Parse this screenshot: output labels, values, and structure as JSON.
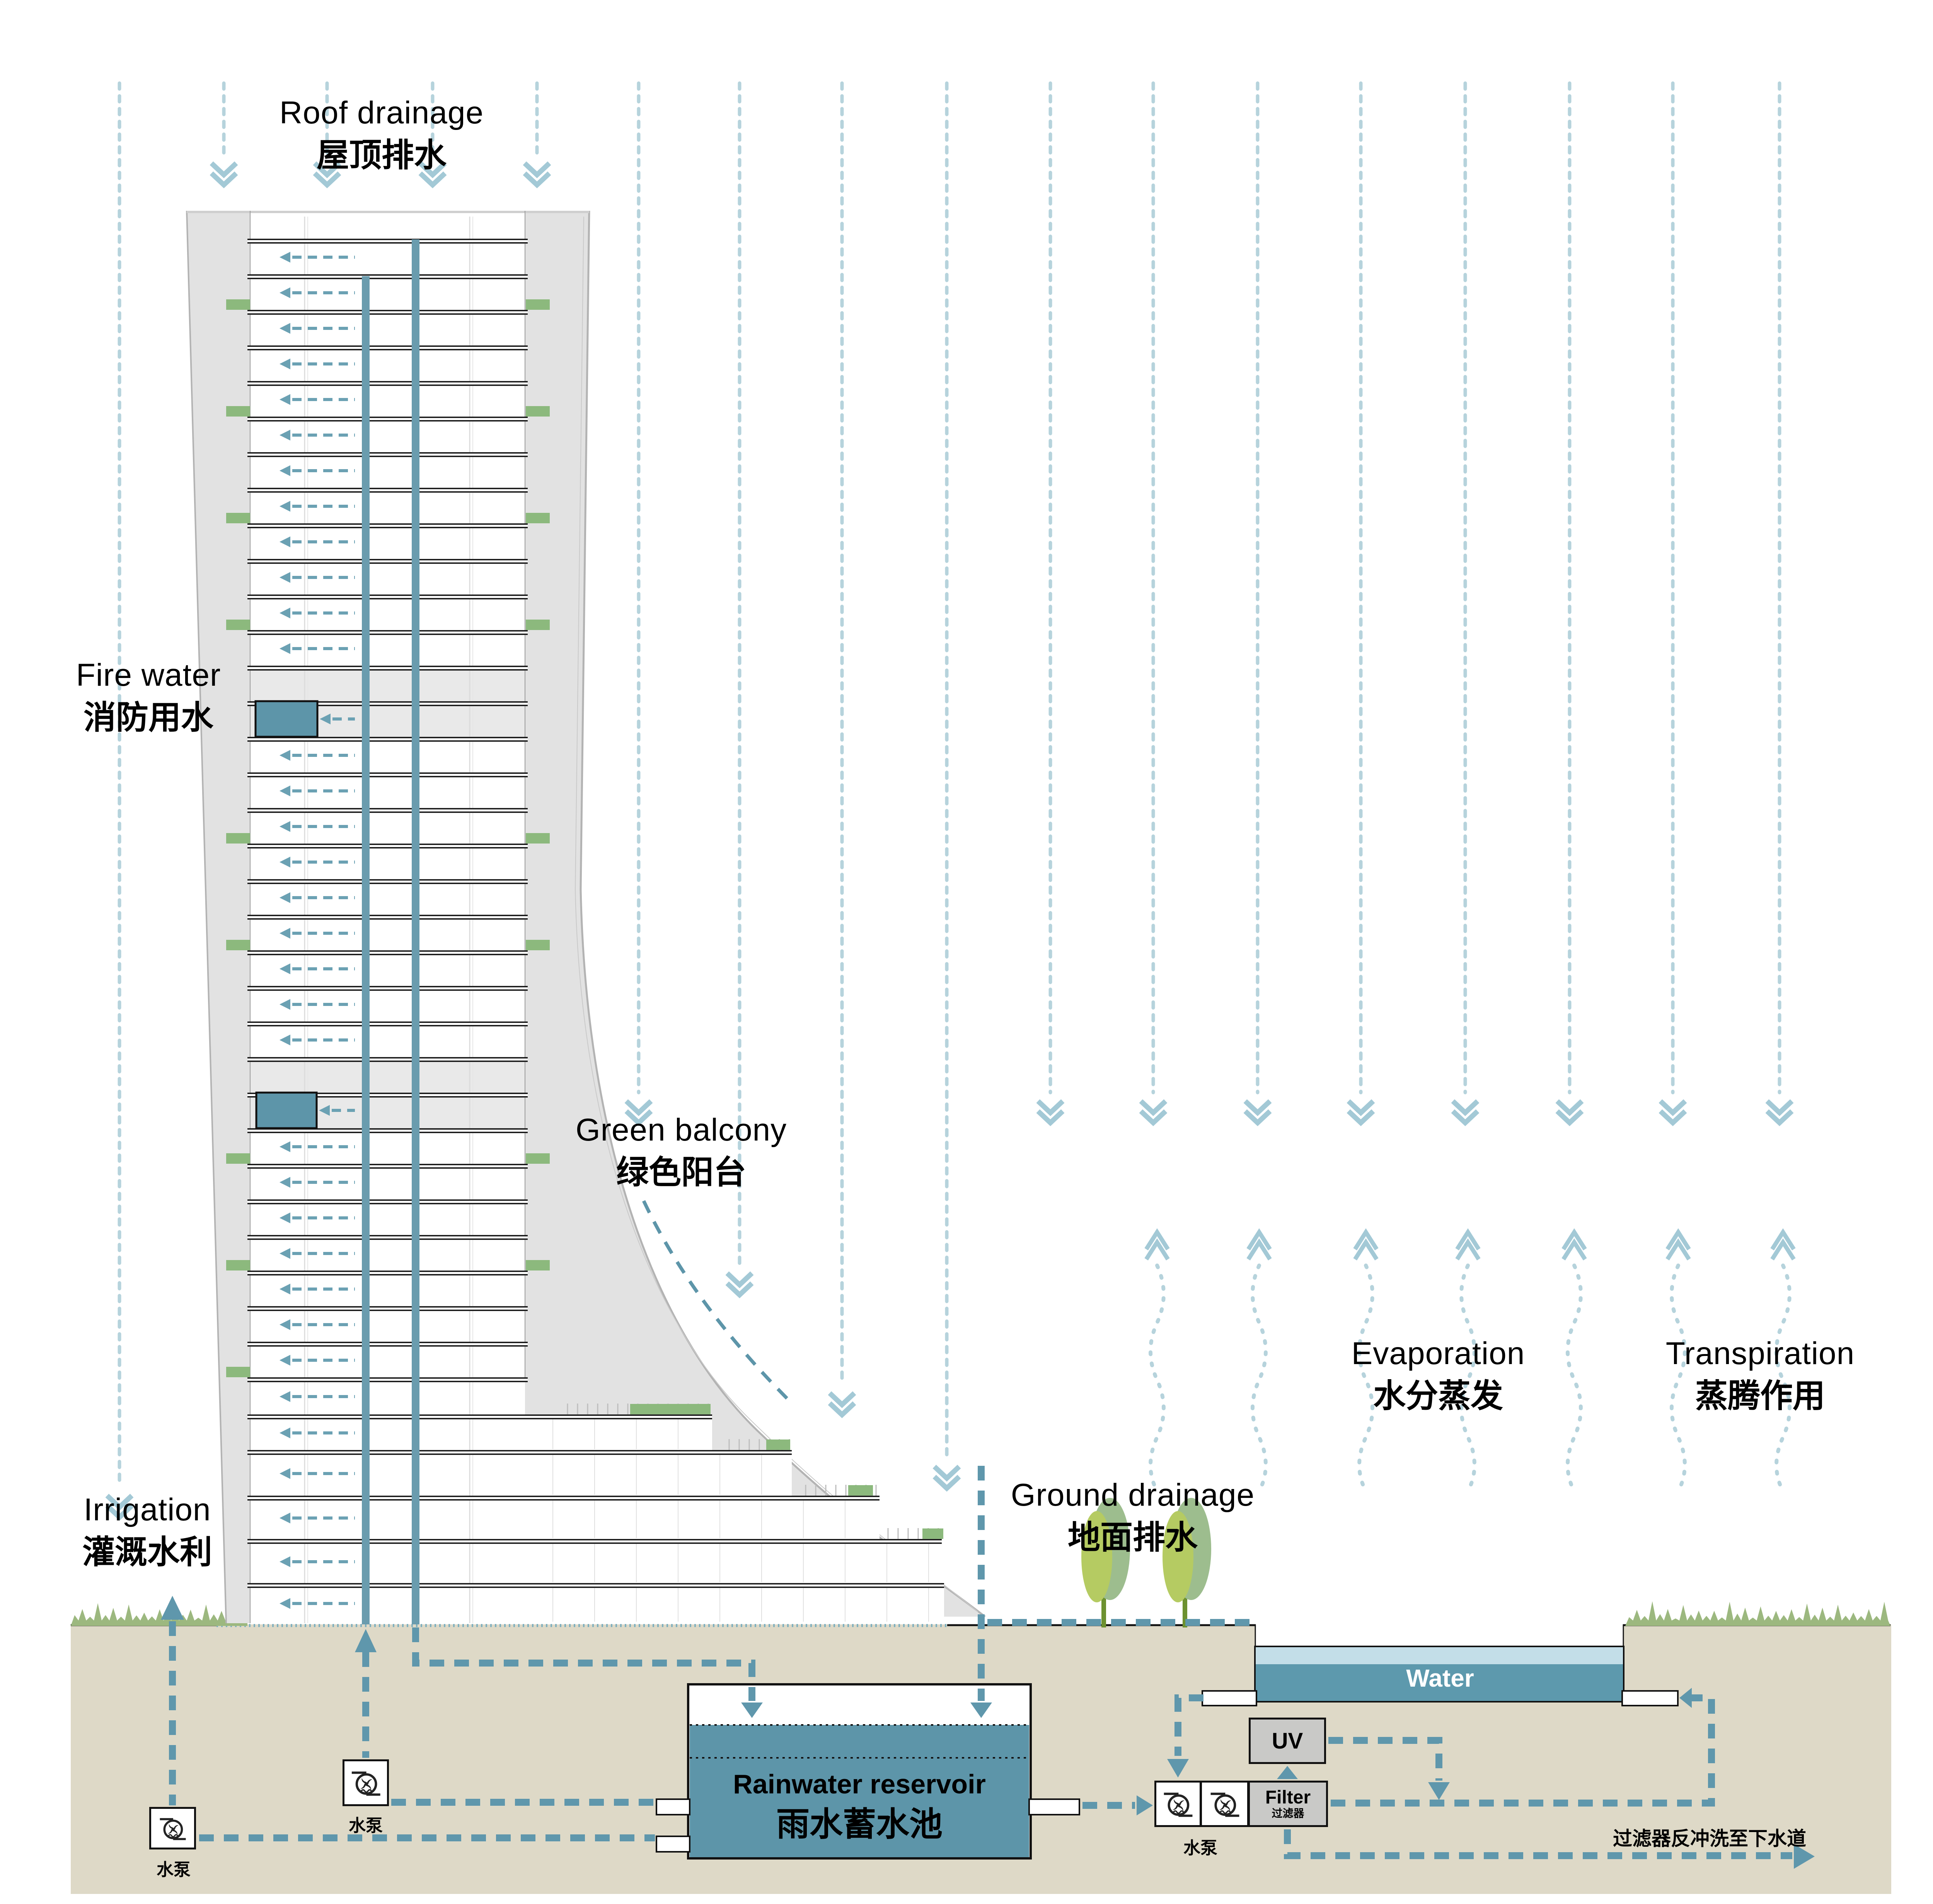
{
  "title": "Building rainwater recycling section diagram",
  "colors": {
    "teal_accent": "#5d95a9",
    "pond_teal": "#5d99ad",
    "pond_light": "#c3dee8",
    "pipe_teal": "#6a9cae",
    "flow_dash": "#5f97ac",
    "rain_blue": "#b6d3dc",
    "chevron_blue": "#a3c9d6",
    "ground_tan": "#ded9c7",
    "wall_grey": "#e2e2e2",
    "planter_green": "#8cb97d",
    "grass_green": "#9cb87f",
    "box_grey": "#c9c9c7"
  },
  "labels": {
    "roof_drainage": {
      "en": "Roof drainage",
      "zh": "屋顶排水"
    },
    "fire_water": {
      "en": "Fire water",
      "zh": "消防用水"
    },
    "green_balcony": {
      "en": "Green balcony",
      "zh": "绿色阳台"
    },
    "irrigation": {
      "en": "Irrigation",
      "zh": "灌溉水利"
    },
    "ground_drainage": {
      "en": "Ground drainage",
      "zh": "地面排水"
    },
    "evaporation": {
      "en": "Evaporation",
      "zh": "水分蒸发"
    },
    "transpiration": {
      "en": "Transpiration",
      "zh": "蒸腾作用"
    }
  },
  "reservoir": {
    "en": "Rainwater reservoir",
    "zh": "雨水蓄水池"
  },
  "pond": {
    "label": "Water"
  },
  "uv_unit": {
    "label": "UV"
  },
  "filter_unit": {
    "en": "Filter",
    "zh": "过滤器"
  },
  "pump_label": "水泵",
  "backwash_note": "过滤器反冲洗至下水道",
  "icons": [
    "pump-icon",
    "rain-arrow-icon",
    "evaporation-arrow-icon",
    "tree-icon",
    "grass-icon"
  ]
}
